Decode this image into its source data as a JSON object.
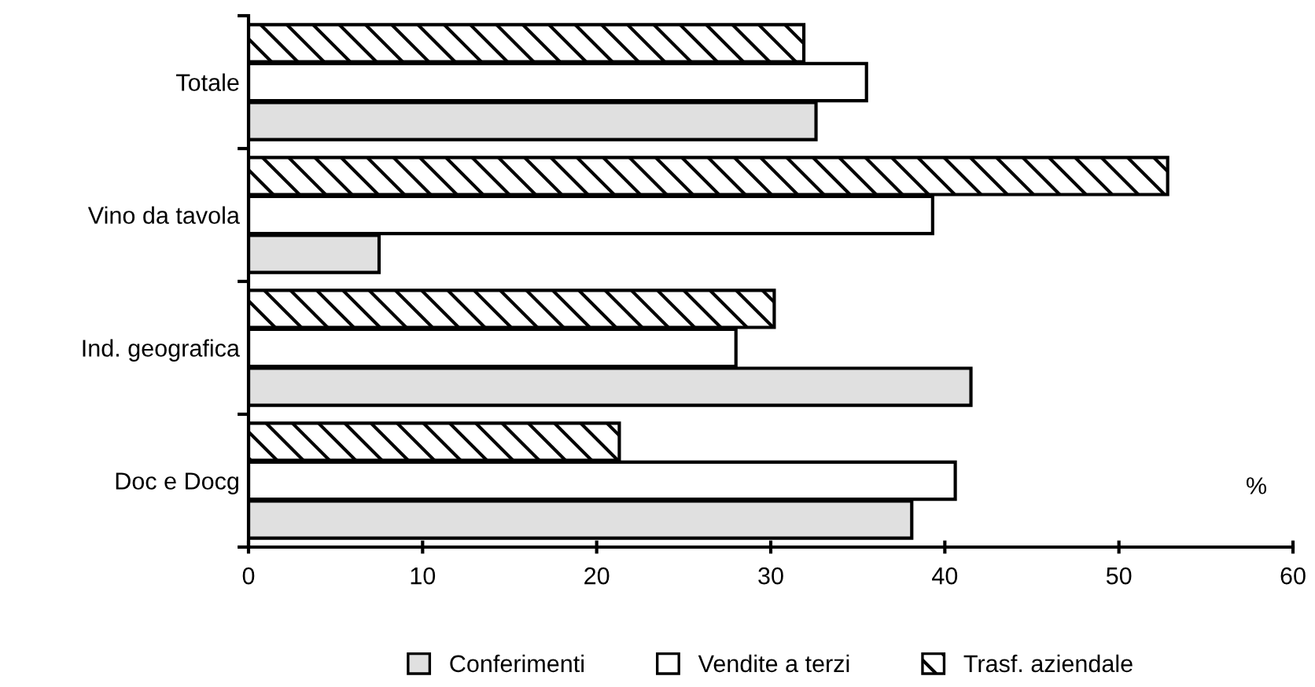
{
  "chart_data": {
    "type": "bar",
    "orientation": "horizontal",
    "xlabel": "%",
    "categories": [
      "Totale",
      "Vino da tavola",
      "Ind. geografica",
      "Doc e Docg"
    ],
    "series": [
      {
        "name": "Conferimenti",
        "color": "#e0e0e0",
        "values": [
          32.6,
          7.5,
          41.5,
          38.1
        ]
      },
      {
        "name": "Vendite a terzi",
        "color": "#ffffff",
        "values": [
          35.5,
          39.3,
          28.0,
          40.6
        ]
      },
      {
        "name": "Trasf. aziendale",
        "color": "#000000",
        "values": [
          31.9,
          52.8,
          30.2,
          21.3
        ]
      }
    ],
    "xlim": [
      0,
      60
    ],
    "xticks": [
      0,
      10,
      20,
      30,
      40,
      50,
      60
    ],
    "grid": false,
    "legend": "bottom"
  }
}
